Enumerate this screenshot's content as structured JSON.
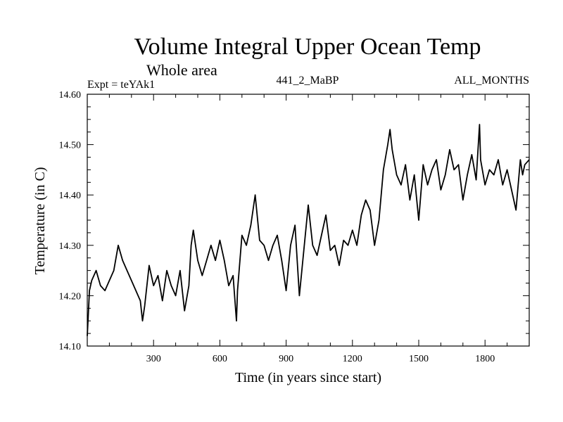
{
  "chart_data": {
    "type": "line",
    "title": "Volume Integral Upper Ocean Temp",
    "subtitle": "Whole area",
    "expt_label": "Expt = teYAk1",
    "run_label": "441_2_MaBP",
    "months_label": "ALL_MONTHS",
    "xlabel": "Time (in years since start)",
    "ylabel": "Temperature (in C)",
    "xlim": [
      0,
      2000
    ],
    "ylim": [
      14.1,
      14.6
    ],
    "xticks": [
      300,
      600,
      900,
      1200,
      1500,
      1800
    ],
    "xtick_labels": [
      "300",
      "600",
      "900",
      "1200",
      "1500",
      "1800"
    ],
    "yticks": [
      14.1,
      14.2,
      14.3,
      14.4,
      14.5,
      14.6
    ],
    "ytick_labels": [
      "14.10",
      "14.20",
      "14.30",
      "14.40",
      "14.50",
      "14.60"
    ],
    "grid": false,
    "series": [
      {
        "name": "teYAk1",
        "x": [
          0,
          10,
          20,
          40,
          60,
          80,
          100,
          120,
          140,
          160,
          180,
          200,
          220,
          240,
          250,
          260,
          280,
          300,
          320,
          340,
          360,
          380,
          400,
          420,
          440,
          460,
          470,
          480,
          500,
          520,
          540,
          560,
          580,
          600,
          620,
          640,
          660,
          675,
          680,
          700,
          720,
          740,
          760,
          780,
          800,
          820,
          840,
          860,
          880,
          900,
          920,
          940,
          960,
          980,
          1000,
          1020,
          1040,
          1060,
          1080,
          1100,
          1120,
          1140,
          1160,
          1180,
          1200,
          1220,
          1240,
          1260,
          1280,
          1300,
          1320,
          1340,
          1360,
          1370,
          1380,
          1400,
          1420,
          1440,
          1460,
          1480,
          1500,
          1520,
          1540,
          1560,
          1580,
          1600,
          1620,
          1640,
          1660,
          1680,
          1700,
          1720,
          1740,
          1760,
          1775,
          1780,
          1800,
          1820,
          1840,
          1860,
          1880,
          1900,
          1920,
          1940,
          1960,
          1970,
          1980,
          2000
        ],
        "values": [
          14.12,
          14.21,
          14.23,
          14.25,
          14.22,
          14.21,
          14.23,
          14.25,
          14.3,
          14.27,
          14.25,
          14.23,
          14.21,
          14.19,
          14.15,
          14.18,
          14.26,
          14.22,
          14.24,
          14.19,
          14.25,
          14.22,
          14.2,
          14.25,
          14.17,
          14.22,
          14.3,
          14.33,
          14.27,
          14.24,
          14.27,
          14.3,
          14.27,
          14.31,
          14.27,
          14.22,
          14.24,
          14.15,
          14.21,
          14.32,
          14.3,
          14.34,
          14.4,
          14.31,
          14.3,
          14.27,
          14.3,
          14.32,
          14.27,
          14.21,
          14.3,
          14.34,
          14.2,
          14.29,
          14.38,
          14.3,
          14.28,
          14.32,
          14.36,
          14.29,
          14.3,
          14.26,
          14.31,
          14.3,
          14.33,
          14.3,
          14.36,
          14.39,
          14.37,
          14.3,
          14.35,
          14.45,
          14.5,
          14.53,
          14.49,
          14.44,
          14.42,
          14.46,
          14.39,
          14.44,
          14.35,
          14.46,
          14.42,
          14.45,
          14.47,
          14.41,
          14.44,
          14.49,
          14.45,
          14.46,
          14.39,
          14.44,
          14.48,
          14.43,
          14.54,
          14.47,
          14.42,
          14.45,
          14.44,
          14.47,
          14.42,
          14.45,
          14.41,
          14.37,
          14.47,
          14.44,
          14.46,
          14.47
        ]
      }
    ]
  }
}
